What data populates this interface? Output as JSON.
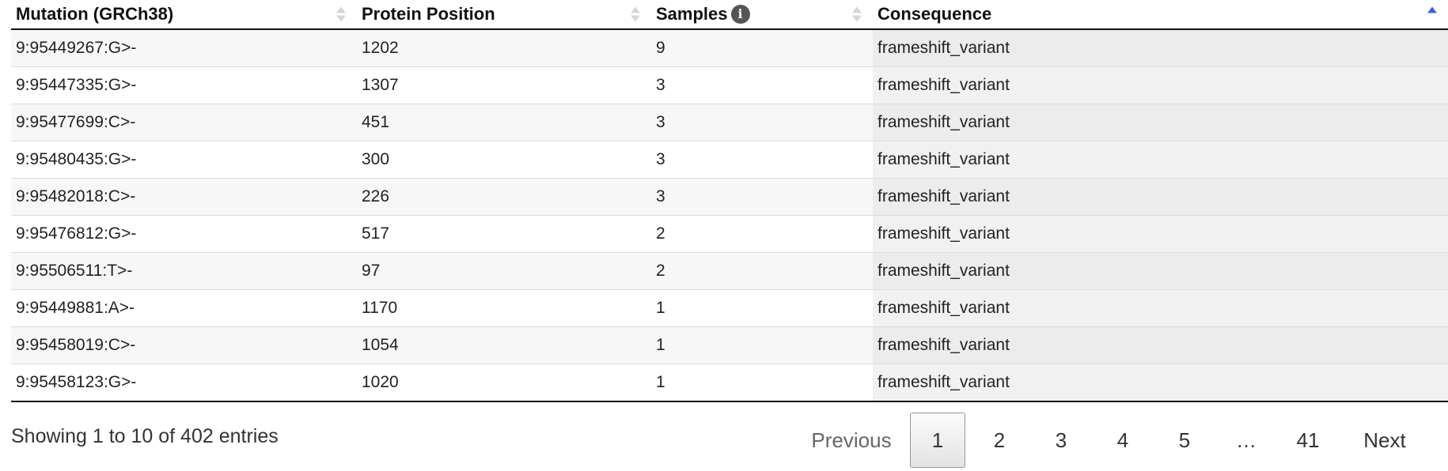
{
  "table": {
    "columns": [
      {
        "label": "Mutation (GRCh38)",
        "sort": "none"
      },
      {
        "label": "Protein Position",
        "sort": "none"
      },
      {
        "label": "Samples",
        "sort": "none",
        "icon": "info-icon"
      },
      {
        "label": "Consequence",
        "sort": "ascending"
      }
    ],
    "rows": [
      [
        "9:95449267:G>-",
        "1202",
        "9",
        "frameshift_variant"
      ],
      [
        "9:95447335:G>-",
        "1307",
        "3",
        "frameshift_variant"
      ],
      [
        "9:95477699:C>-",
        "451",
        "3",
        "frameshift_variant"
      ],
      [
        "9:95480435:G>-",
        "300",
        "3",
        "frameshift_variant"
      ],
      [
        "9:95482018:C>-",
        "226",
        "3",
        "frameshift_variant"
      ],
      [
        "9:95476812:G>-",
        "517",
        "2",
        "frameshift_variant"
      ],
      [
        "9:95506511:T>-",
        "97",
        "2",
        "frameshift_variant"
      ],
      [
        "9:95449881:A>-",
        "1170",
        "1",
        "frameshift_variant"
      ],
      [
        "9:95458019:C>-",
        "1054",
        "1",
        "frameshift_variant"
      ],
      [
        "9:95458123:G>-",
        "1020",
        "1",
        "frameshift_variant"
      ]
    ]
  },
  "info_text": "Showing 1 to 10 of 402 entries",
  "pagination": {
    "previous": "Previous",
    "pages": [
      "1",
      "2",
      "3",
      "4",
      "5"
    ],
    "ellipsis": "…",
    "last": "41",
    "next": "Next",
    "current": "1"
  },
  "colors": {
    "sort_active": "#3f63c8",
    "info_icon": "#555555"
  }
}
